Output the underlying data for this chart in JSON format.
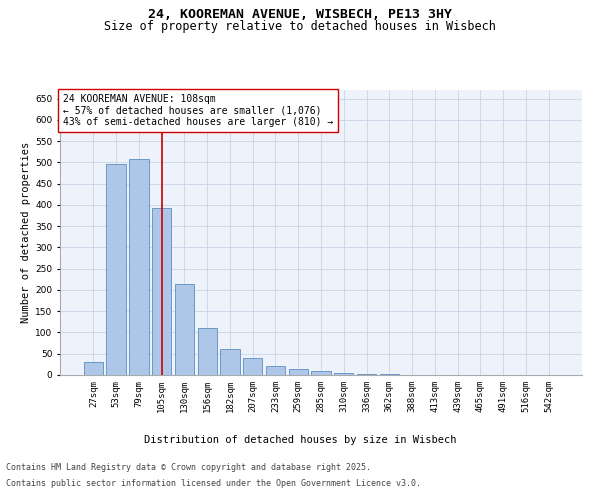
{
  "title_line1": "24, KOOREMAN AVENUE, WISBECH, PE13 3HY",
  "title_line2": "Size of property relative to detached houses in Wisbech",
  "xlabel": "Distribution of detached houses by size in Wisbech",
  "ylabel": "Number of detached properties",
  "categories": [
    "27sqm",
    "53sqm",
    "79sqm",
    "105sqm",
    "130sqm",
    "156sqm",
    "182sqm",
    "207sqm",
    "233sqm",
    "259sqm",
    "285sqm",
    "310sqm",
    "336sqm",
    "362sqm",
    "388sqm",
    "413sqm",
    "439sqm",
    "465sqm",
    "491sqm",
    "516sqm",
    "542sqm"
  ],
  "values": [
    30,
    497,
    507,
    393,
    213,
    110,
    62,
    40,
    20,
    14,
    10,
    5,
    3,
    2,
    1,
    0,
    0,
    0,
    0,
    0,
    0
  ],
  "bar_color": "#aec6e8",
  "bar_edge_color": "#5a8fc2",
  "bar_linewidth": 0.6,
  "vline_color": "#cc0000",
  "vline_x_index": 3,
  "annotation_text": "24 KOOREMAN AVENUE: 108sqm\n← 57% of detached houses are smaller (1,076)\n43% of semi-detached houses are larger (810) →",
  "annotation_box_color": "#ffffff",
  "annotation_box_edge": "#cc0000",
  "annotation_fontsize": 7,
  "ylim": [
    0,
    670
  ],
  "yticks": [
    0,
    50,
    100,
    150,
    200,
    250,
    300,
    350,
    400,
    450,
    500,
    550,
    600,
    650
  ],
  "grid_color": "#c8d4e8",
  "background_color": "#eef2fb",
  "footer_line1": "Contains HM Land Registry data © Crown copyright and database right 2025.",
  "footer_line2": "Contains public sector information licensed under the Open Government Licence v3.0.",
  "title_fontsize": 9.5,
  "subtitle_fontsize": 8.5,
  "axis_label_fontsize": 7.5,
  "tick_fontsize": 6.5,
  "footer_fontsize": 6
}
